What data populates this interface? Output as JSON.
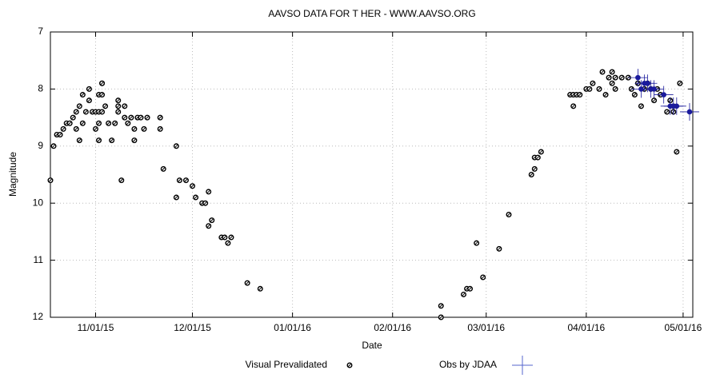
{
  "chart_data": {
    "type": "scatter",
    "title": "AAVSO DATA FOR T HER - WWW.AAVSO.ORG",
    "x_label": "Date",
    "y_label": "Magnitude",
    "xlim": [
      "10/18/15",
      "05/04/16"
    ],
    "xticks": [
      "11/01/15",
      "12/01/15",
      "01/01/16",
      "02/01/16",
      "03/01/16",
      "04/01/16",
      "05/01/16"
    ],
    "ylim": [
      7,
      12
    ],
    "yticks": [
      7,
      8,
      9,
      10,
      11,
      12
    ],
    "y_inverted": true,
    "grid": true,
    "legend": "bottom",
    "series": [
      {
        "name": "Visual Prevalidated",
        "color": "#000000",
        "marker": "circle",
        "x": [
          "10/18/15",
          "10/19/15",
          "10/20/15",
          "10/21/15",
          "10/22/15",
          "10/23/15",
          "10/24/15",
          "10/25/15",
          "10/26/15",
          "10/26/15",
          "10/27/15",
          "10/27/15",
          "10/28/15",
          "10/28/15",
          "10/29/15",
          "10/30/15",
          "10/30/15",
          "10/31/15",
          "11/01/15",
          "11/01/15",
          "11/02/15",
          "11/02/15",
          "11/02/15",
          "11/02/15",
          "11/03/15",
          "11/03/15",
          "11/03/15",
          "11/03/15",
          "11/04/15",
          "11/05/15",
          "11/06/15",
          "11/07/15",
          "11/08/15",
          "11/08/15",
          "11/08/15",
          "11/09/15",
          "11/10/15",
          "11/10/15",
          "11/11/15",
          "11/12/15",
          "11/13/15",
          "11/13/15",
          "11/14/15",
          "11/15/15",
          "11/16/15",
          "11/17/15",
          "11/21/15",
          "11/21/15",
          "11/22/15",
          "11/26/15",
          "11/26/15",
          "11/27/15",
          "11/29/15",
          "12/01/15",
          "12/02/15",
          "12/04/15",
          "12/05/15",
          "12/06/15",
          "12/06/15",
          "12/07/15",
          "12/10/15",
          "12/11/15",
          "12/12/15",
          "12/13/15",
          "12/18/15",
          "12/22/15",
          "02/16/16",
          "02/16/16",
          "02/23/16",
          "02/24/16",
          "02/25/16",
          "02/27/16",
          "02/29/16",
          "03/05/16",
          "03/08/16",
          "03/15/16",
          "03/16/16",
          "03/16/16",
          "03/17/16",
          "03/18/16",
          "03/27/16",
          "03/28/16",
          "03/28/16",
          "03/29/16",
          "03/30/16",
          "04/01/16",
          "04/02/16",
          "04/03/16",
          "04/05/16",
          "04/06/16",
          "04/07/16",
          "04/08/16",
          "04/09/16",
          "04/09/16",
          "04/10/16",
          "04/10/16",
          "04/12/16",
          "04/14/16",
          "04/15/16",
          "04/16/16",
          "04/17/16",
          "04/18/16",
          "04/19/16",
          "04/20/16",
          "04/21/16",
          "04/22/16",
          "04/23/16",
          "04/24/16",
          "04/26/16",
          "04/27/16",
          "04/28/16",
          "04/28/16",
          "04/29/16",
          "04/30/16"
        ],
        "values": [
          9.6,
          9.0,
          8.8,
          8.8,
          8.7,
          8.6,
          8.6,
          8.5,
          8.4,
          8.7,
          8.3,
          8.9,
          8.1,
          8.6,
          8.4,
          8.0,
          8.2,
          8.4,
          8.4,
          8.7,
          8.9,
          8.6,
          8.4,
          8.1,
          7.9,
          7.9,
          8.1,
          8.4,
          8.3,
          8.6,
          8.9,
          8.6,
          8.2,
          8.4,
          8.3,
          9.6,
          8.3,
          8.5,
          8.6,
          8.5,
          8.9,
          8.7,
          8.5,
          8.5,
          8.7,
          8.5,
          8.5,
          8.7,
          9.4,
          9.0,
          9.9,
          9.6,
          9.6,
          9.7,
          9.9,
          10.0,
          10.0,
          9.8,
          10.4,
          10.3,
          10.6,
          10.6,
          10.7,
          10.6,
          11.4,
          11.5,
          11.8,
          12.0,
          11.6,
          11.5,
          11.5,
          10.7,
          11.3,
          10.8,
          10.2,
          9.5,
          9.2,
          9.4,
          9.2,
          9.1,
          8.1,
          8.3,
          8.1,
          8.1,
          8.1,
          8.0,
          8.0,
          7.9,
          8.0,
          7.7,
          8.1,
          7.8,
          7.7,
          7.9,
          7.8,
          8.0,
          7.8,
          7.8,
          8.0,
          8.1,
          7.9,
          8.3,
          8.0,
          7.9,
          8.0,
          8.2,
          8.0,
          8.1,
          8.4,
          8.2,
          8.4,
          8.3,
          9.1,
          7.9
        ]
      },
      {
        "name": "Obs by JDAA",
        "color": "#1a1a9c",
        "marker": "cross",
        "x": [
          "04/17/16",
          "04/18/16",
          "04/19/16",
          "04/20/16",
          "04/21/16",
          "04/22/16",
          "04/25/16",
          "04/27/16",
          "04/28/16",
          "04/29/16",
          "05/03/16"
        ],
        "values": [
          7.8,
          8.0,
          7.9,
          7.9,
          8.0,
          8.0,
          8.1,
          8.3,
          8.3,
          8.3,
          8.4
        ]
      }
    ]
  }
}
